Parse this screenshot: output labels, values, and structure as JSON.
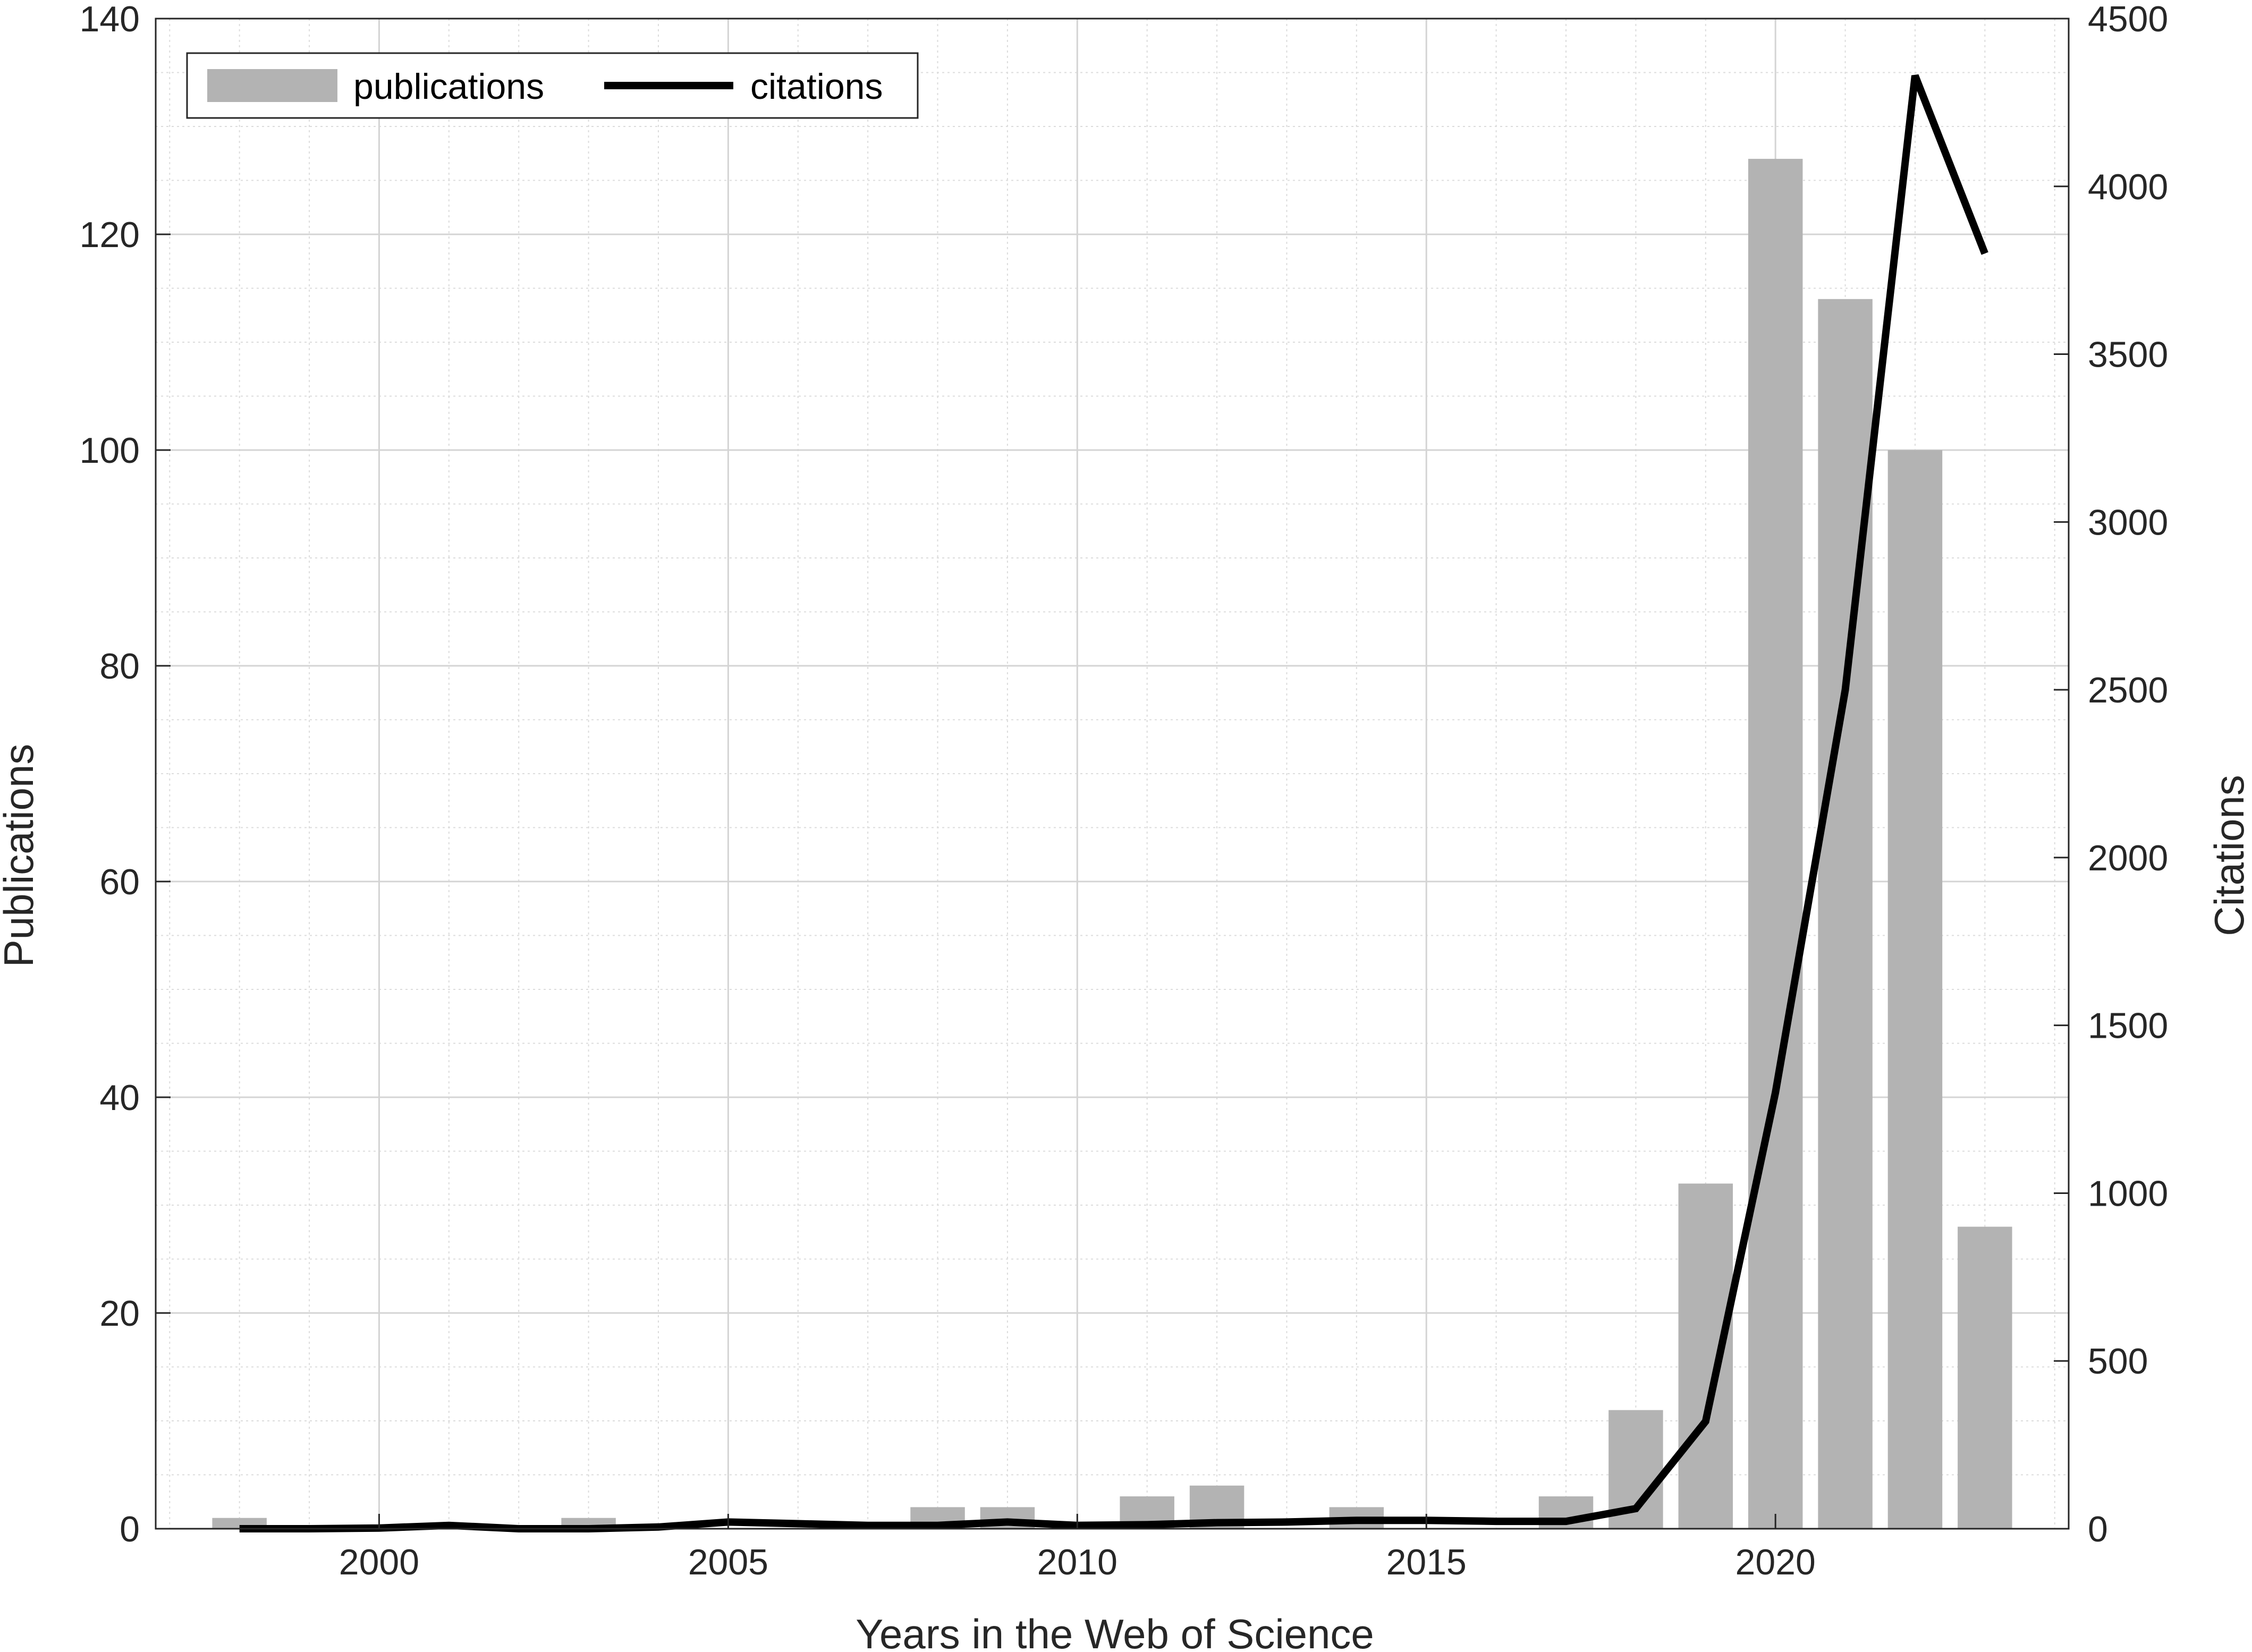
{
  "chart_data": {
    "type": "bar",
    "xlabel": "Years in the Web of Science",
    "ylabel_left": "Publications",
    "ylabel_right": "Citations",
    "xlim": [
      1996.8,
      2024.2
    ],
    "ylim_left": [
      0,
      140
    ],
    "ylim_right": [
      0,
      4500
    ],
    "x_ticks": [
      2000,
      2005,
      2010,
      2015,
      2020
    ],
    "y_ticks_left": [
      0,
      20,
      40,
      60,
      80,
      100,
      120,
      140
    ],
    "y_ticks_right": [
      0,
      500,
      1000,
      1500,
      2000,
      2500,
      3000,
      3500,
      4000,
      4500
    ],
    "grid": true,
    "minor_grid": true,
    "legend_position": "top-left",
    "x": [
      1998,
      1999,
      2000,
      2001,
      2002,
      2003,
      2004,
      2005,
      2006,
      2007,
      2008,
      2009,
      2010,
      2011,
      2012,
      2013,
      2014,
      2015,
      2016,
      2017,
      2018,
      2019,
      2020,
      2021,
      2022,
      2023
    ],
    "series": [
      {
        "name": "publications",
        "type": "bar",
        "axis": "left",
        "color": "#b3b3b3",
        "values": [
          1,
          0,
          0,
          0,
          0,
          1,
          0,
          0,
          0,
          0,
          2,
          2,
          0,
          3,
          4,
          0,
          2,
          0,
          0,
          3,
          11,
          32,
          127,
          114,
          100,
          28
        ]
      },
      {
        "name": "citations",
        "type": "line",
        "axis": "right",
        "color": "#000000",
        "values": [
          0,
          0,
          2,
          10,
          0,
          0,
          5,
          20,
          15,
          10,
          10,
          20,
          10,
          12,
          18,
          20,
          25,
          25,
          22,
          22,
          60,
          320,
          1300,
          2500,
          4330,
          3800
        ]
      }
    ]
  }
}
